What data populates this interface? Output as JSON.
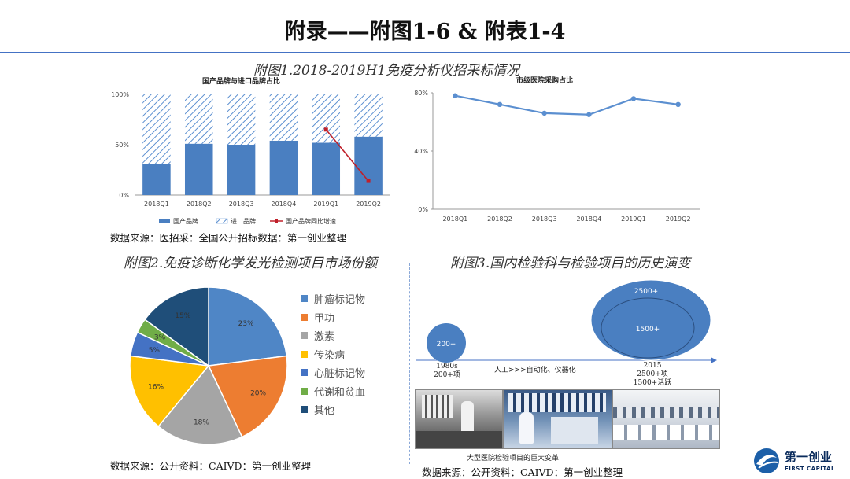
{
  "page": {
    "title": "附录——附图1-6 & 附表1-4"
  },
  "figure1": {
    "caption": "附图1.2018-2019H1免疫分析仪招采标情况",
    "source": "数据来源：医招采：全国公开招标数据：第一创业整理"
  },
  "figure2": {
    "caption": "附图2.免疫诊断化学发光检测项目市场份额",
    "source": "数据来源：公开资料：CAIVD：第一创业整理"
  },
  "figure3": {
    "caption": "附图3.国内检验科与检验项目的历史演变",
    "bubble_small": "200+",
    "bubble_large_outer": "2500+",
    "bubble_large_inner": "1500+",
    "left_label_line1": "1980s",
    "left_label_line2": "200+项",
    "mid_label": "人工>>>自动化、仪器化",
    "right_label_line1": "2015",
    "right_label_line2": "2500+项",
    "right_label_line3": "1500+活跃",
    "photo_caption": "大型医院检验项目的巨大变革",
    "source": "数据来源：公开资料：CAIVD：第一创业整理"
  },
  "logo": {
    "name": "第一创业",
    "sub": "FIRST CAPITAL"
  },
  "colors": {
    "accent_blue": "#4472c4",
    "bar_blue": "#4a7fc1",
    "line_red": "#c0202a"
  },
  "chart_data": [
    {
      "type": "bar",
      "title": "国产品牌与进口品牌占比",
      "categories": [
        "2018Q1",
        "2018Q2",
        "2018Q3",
        "2018Q4",
        "2019Q1",
        "2019Q2"
      ],
      "ylim": [
        0,
        100
      ],
      "yticks": [
        "0%",
        "50%",
        "100%"
      ],
      "stacked": true,
      "series": [
        {
          "name": "国产品牌",
          "values": [
            31,
            51,
            50,
            54,
            52,
            58
          ]
        },
        {
          "name": "进口品牌",
          "values": [
            69,
            49,
            50,
            46,
            48,
            42
          ]
        }
      ],
      "line_series": {
        "name": "国产品牌同比增速",
        "points": [
          {
            "category": "2019Q1",
            "value": 65
          },
          {
            "category": "2019Q2",
            "value": 14
          }
        ]
      },
      "legend": "bottom"
    },
    {
      "type": "line",
      "title": "市级医院采购占比",
      "categories": [
        "2018Q1",
        "2018Q2",
        "2018Q3",
        "2018Q4",
        "2019Q1",
        "2019Q2"
      ],
      "values": [
        78,
        72,
        66,
        65,
        76,
        72
      ],
      "ylim": [
        0,
        80
      ],
      "yticks": [
        "0%",
        "40%",
        "80%"
      ]
    },
    {
      "type": "pie",
      "labels": [
        "肿瘤标记物",
        "甲功",
        "激素",
        "传染病",
        "心脏标记物",
        "代谢和贫血",
        "其他"
      ],
      "values": [
        23,
        20,
        18,
        16,
        5,
        3,
        15
      ],
      "value_labels": [
        "23%",
        "20%",
        "18%",
        "16%",
        "5%",
        "3%",
        "15%"
      ],
      "colors": [
        "#4f86c6",
        "#ed7d31",
        "#a5a5a5",
        "#ffc000",
        "#4472c4",
        "#70ad47",
        "#1f4e79"
      ],
      "legend": "right"
    }
  ]
}
